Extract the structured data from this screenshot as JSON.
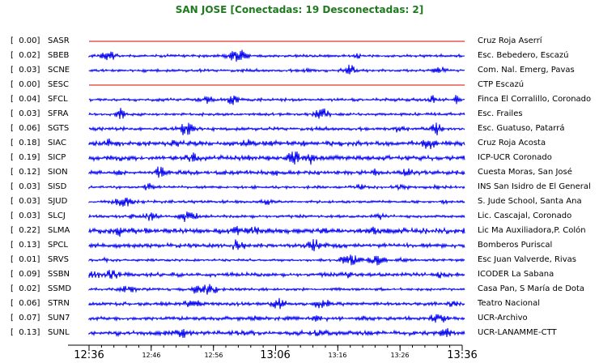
{
  "header": {
    "title": "SAN JOSE [Conectadas: 19 Desconectadas: 2]"
  },
  "colors": {
    "connected": "#0000ee",
    "disconnected": "#e00000",
    "title": "#1f7a1f"
  },
  "stations": [
    {
      "amp": "[  0.00]",
      "code": "SASR",
      "site": "Cruz Roja Aserrí",
      "status": "disconnected",
      "level": 0.0
    },
    {
      "amp": "[  0.02]",
      "code": "SBEB",
      "site": "Esc. Bebedero, Escazú",
      "status": "connected",
      "level": 0.02
    },
    {
      "amp": "[  0.03]",
      "code": "SCNE",
      "site": "Com. Nal. Emerg, Pavas",
      "status": "connected",
      "level": 0.03
    },
    {
      "amp": "[  0.00]",
      "code": "SESC",
      "site": "CTP Escazú",
      "status": "disconnected",
      "level": 0.0
    },
    {
      "amp": "[  0.04]",
      "code": "SFCL",
      "site": "Finca El Corralillo, Coronado",
      "status": "connected",
      "level": 0.04
    },
    {
      "amp": "[  0.03]",
      "code": "SFRA",
      "site": "Esc. Frailes",
      "status": "connected",
      "level": 0.03
    },
    {
      "amp": "[  0.06]",
      "code": "SGTS",
      "site": "Esc. Guatuso, Patarrá",
      "status": "connected",
      "level": 0.06
    },
    {
      "amp": "[  0.18]",
      "code": "SIAC",
      "site": "Cruz Roja Acosta",
      "status": "connected",
      "level": 0.18
    },
    {
      "amp": "[  0.19]",
      "code": "SICP",
      "site": "ICP-UCR Coronado",
      "status": "connected",
      "level": 0.19
    },
    {
      "amp": "[  0.12]",
      "code": "SION",
      "site": "Cuesta Moras, San José",
      "status": "connected",
      "level": 0.12
    },
    {
      "amp": "[  0.03]",
      "code": "SISD",
      "site": "INS San Isidro de El General",
      "status": "connected",
      "level": 0.03
    },
    {
      "amp": "[  0.03]",
      "code": "SJUD",
      "site": "S. Jude School, Santa Ana",
      "status": "connected",
      "level": 0.03
    },
    {
      "amp": "[  0.03]",
      "code": "SLCJ",
      "site": "Lic. Cascajal, Coronado",
      "status": "connected",
      "level": 0.03
    },
    {
      "amp": "[  0.22]",
      "code": "SLMA",
      "site": "Lic Ma Auxiliadora,P. Colón",
      "status": "connected",
      "level": 0.22
    },
    {
      "amp": "[  0.13]",
      "code": "SPCL",
      "site": "Bomberos Puriscal",
      "status": "connected",
      "level": 0.13
    },
    {
      "amp": "[  0.01]",
      "code": "SRVS",
      "site": "Esc Juan Valverde, Rivas",
      "status": "connected",
      "level": 0.01
    },
    {
      "amp": "[  0.09]",
      "code": "SSBN",
      "site": "ICODER La Sabana",
      "status": "connected",
      "level": 0.09
    },
    {
      "amp": "[  0.02]",
      "code": "SSMD",
      "site": "Casa Pan, S María de Dota",
      "status": "connected",
      "level": 0.02
    },
    {
      "amp": "[  0.06]",
      "code": "STRN",
      "site": "Teatro Nacional",
      "status": "connected",
      "level": 0.06
    },
    {
      "amp": "[  0.07]",
      "code": "SUN7",
      "site": "UCR-Archivo",
      "status": "connected",
      "level": 0.07
    },
    {
      "amp": "[  0.13]",
      "code": "SUNL",
      "site": "UCR-LANAMME-CTT",
      "status": "connected",
      "level": 0.13
    }
  ],
  "time_axis": {
    "major": [
      "12:36",
      "13:06",
      "13:36"
    ],
    "minor": [
      "12:46",
      "12:56",
      "13:16",
      "13:26"
    ]
  }
}
